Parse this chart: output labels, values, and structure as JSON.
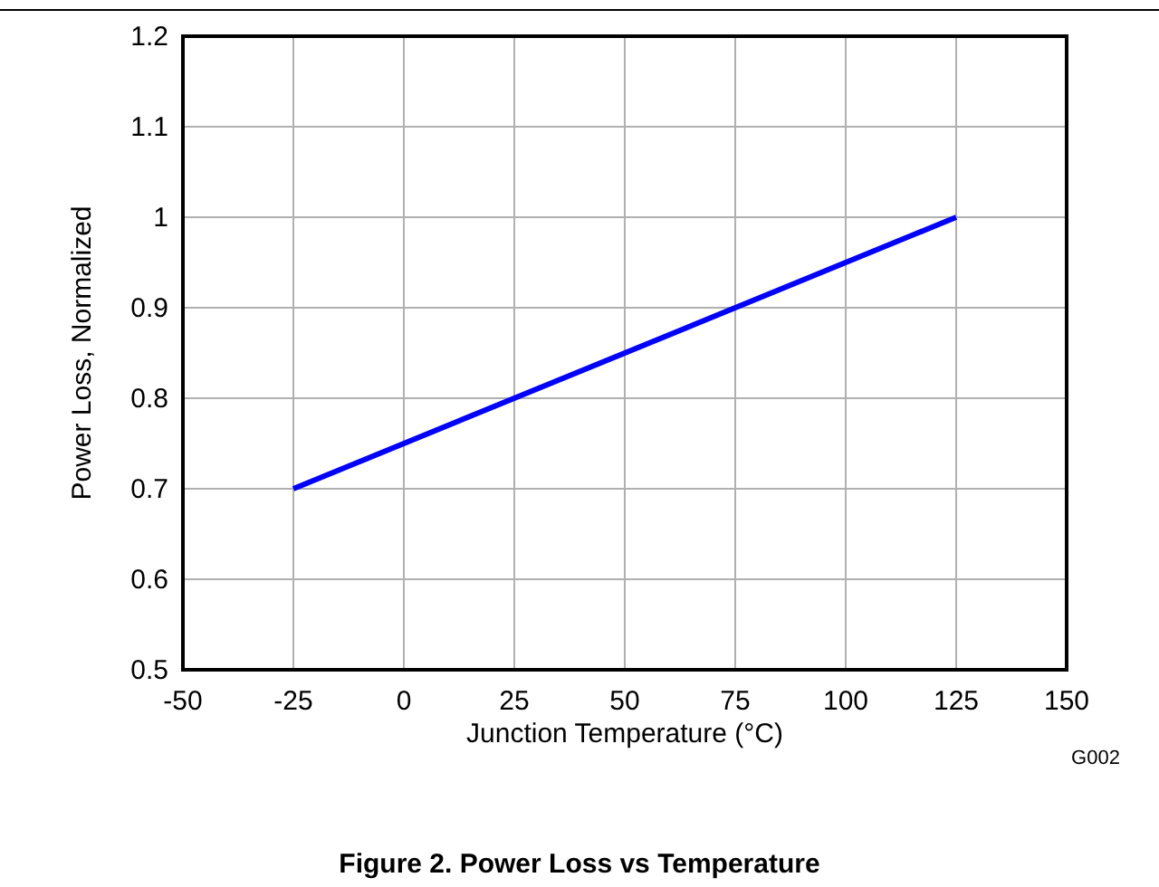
{
  "chart_data": {
    "type": "line",
    "title": "Figure 2. Power Loss vs Temperature",
    "xlabel": "Junction Temperature (°C)",
    "ylabel": "Power Loss, Normalized",
    "annotations": [
      "G002"
    ],
    "x": [
      -25,
      125
    ],
    "series": [
      {
        "color": "#0000ff",
        "values": [
          0.7,
          1.0
        ]
      }
    ],
    "xlim": [
      -50,
      150
    ],
    "xticks": [
      -50,
      -25,
      0,
      25,
      50,
      75,
      100,
      125,
      150
    ],
    "ylim": [
      0.5,
      1.2
    ],
    "yticks": [
      0.5,
      0.6,
      0.7,
      0.8,
      0.9,
      1,
      1.1,
      1.2
    ],
    "grid": true,
    "marker": "none",
    "line_style": "solid"
  }
}
